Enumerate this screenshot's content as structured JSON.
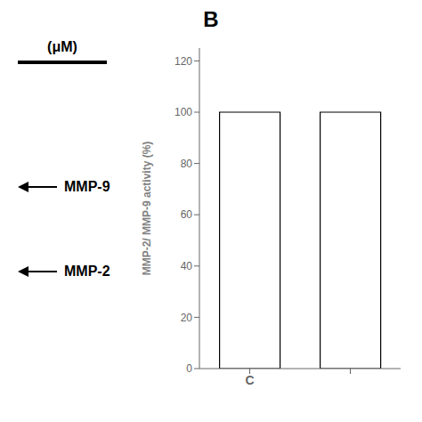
{
  "chart_data": {
    "type": "bar",
    "title": "B",
    "annotations": [
      "(μM)",
      "MMP-9",
      "MMP-2"
    ],
    "y_label": "MMP-2/ MMP-9 activity (%)",
    "categories": [
      "C",
      null
    ],
    "values": [
      100,
      100
    ],
    "colors": [
      "white",
      "white"
    ],
    "ylim": [
      0,
      125
    ],
    "yticks": [
      0,
      20,
      40,
      60,
      80,
      100,
      120
    ]
  }
}
